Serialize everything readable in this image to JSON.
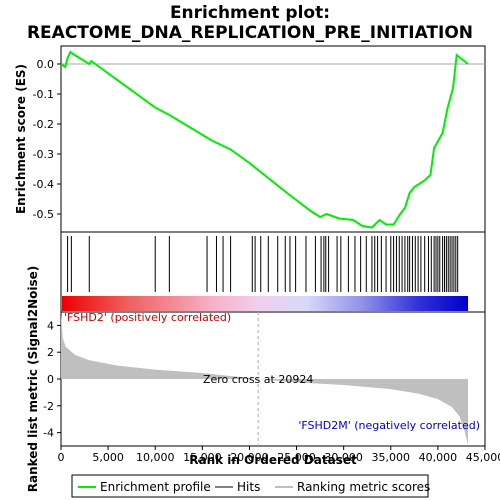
{
  "chart_data": {
    "type": "line",
    "title_line1": "Enrichment plot:",
    "title_line2": "REACTOME_DNA_REPLICATION_PRE_INITIATION",
    "top_panel": {
      "ylabel": "Enrichment score (ES)",
      "ylim": [
        -0.56,
        0.06
      ],
      "yticks": [
        0.0,
        -0.1,
        -0.2,
        -0.3,
        -0.4,
        -0.5
      ],
      "ytick_labels": [
        "0.0",
        "-0.1",
        "-0.2",
        "-0.3",
        "-0.4",
        "-0.5"
      ],
      "series_name": "Enrichment profile",
      "line_color": "#00ee00",
      "points": [
        [
          0,
          0.0
        ],
        [
          450,
          -0.01
        ],
        [
          700,
          0.02
        ],
        [
          1000,
          0.04
        ],
        [
          1200,
          0.035
        ],
        [
          3000,
          0.0
        ],
        [
          3200,
          0.01
        ],
        [
          10000,
          -0.145
        ],
        [
          11500,
          -0.17
        ],
        [
          16000,
          -0.255
        ],
        [
          18000,
          -0.285
        ],
        [
          20000,
          -0.33
        ],
        [
          24000,
          -0.43
        ],
        [
          26500,
          -0.49
        ],
        [
          27500,
          -0.51
        ],
        [
          28200,
          -0.5
        ],
        [
          29500,
          -0.515
        ],
        [
          31000,
          -0.52
        ],
        [
          32000,
          -0.54
        ],
        [
          33000,
          -0.545
        ],
        [
          33800,
          -0.52
        ],
        [
          34500,
          -0.535
        ],
        [
          35300,
          -0.535
        ],
        [
          36000,
          -0.5
        ],
        [
          36500,
          -0.48
        ],
        [
          37000,
          -0.43
        ],
        [
          37500,
          -0.41
        ],
        [
          38500,
          -0.39
        ],
        [
          39200,
          -0.37
        ],
        [
          39600,
          -0.28
        ],
        [
          40500,
          -0.23
        ],
        [
          41000,
          -0.15
        ],
        [
          41600,
          -0.08
        ],
        [
          42000,
          0.03
        ],
        [
          43200,
          0.0
        ]
      ],
      "zero_line_color": "#aaaaaa"
    },
    "hits_panel": {
      "series_name": "Hits",
      "hit_positions": [
        700,
        1100,
        3000,
        10000,
        11500,
        15500,
        16500,
        17200,
        18000,
        20300,
        20600,
        21200,
        22000,
        23000,
        23800,
        24300,
        24900,
        26000,
        27000,
        27600,
        27900,
        28100,
        28400,
        29300,
        29700,
        30500,
        31200,
        31800,
        32400,
        33000,
        33300,
        33600,
        34000,
        34500,
        35000,
        35300,
        35600,
        35900,
        36200,
        36500,
        36800,
        37000,
        37300,
        37600,
        37900,
        38200,
        38600,
        39000,
        39300,
        39600,
        39800,
        40000,
        40200,
        40500,
        40700,
        40900,
        41100,
        41300,
        41500,
        41700,
        41900,
        42100
      ],
      "color_bar_stops": [
        [
          0,
          "#ee0000"
        ],
        [
          7000,
          "#ee6060"
        ],
        [
          16000,
          "#f8b0c8"
        ],
        [
          21000,
          "#f0d0f0"
        ],
        [
          26000,
          "#d8d8f8"
        ],
        [
          32000,
          "#9090e8"
        ],
        [
          38000,
          "#3030d8"
        ],
        [
          43200,
          "#0000cc"
        ]
      ]
    },
    "bottom_panel": {
      "ylabel": "Ranked list metric (Signal2Noise)",
      "ylim": [
        -5,
        5
      ],
      "yticks": [
        4,
        2,
        0,
        -2,
        -4
      ],
      "ytick_labels": [
        "4",
        "2",
        "0",
        "-2",
        "-4"
      ],
      "series_name": "Ranking metric scores",
      "fill_color": "#bfbfbf",
      "metric_points": [
        [
          0,
          4.8
        ],
        [
          200,
          3.0
        ],
        [
          500,
          2.4
        ],
        [
          1500,
          1.8
        ],
        [
          3000,
          1.4
        ],
        [
          6000,
          1.0
        ],
        [
          10000,
          0.7
        ],
        [
          15000,
          0.45
        ],
        [
          20924,
          0.0
        ],
        [
          25000,
          -0.25
        ],
        [
          30000,
          -0.45
        ],
        [
          35000,
          -0.75
        ],
        [
          38000,
          -1.1
        ],
        [
          40000,
          -1.5
        ],
        [
          41500,
          -2.1
        ],
        [
          42300,
          -2.8
        ],
        [
          42800,
          -3.8
        ],
        [
          43200,
          -4.9
        ]
      ],
      "zero_cross_text": "Zero cross at 20924",
      "zero_cross_x": 20924,
      "pos_label": "'FSHD2' (positively correlated)",
      "neg_label": "'FSHD2M' (negatively correlated)"
    },
    "xaxis": {
      "xlabel": "Rank in Ordered Dataset",
      "xlim": [
        0,
        45000
      ],
      "xticks": [
        0,
        5000,
        10000,
        15000,
        20000,
        25000,
        30000,
        35000,
        40000,
        45000
      ],
      "xtick_labels": [
        "0",
        "5,000",
        "10,000",
        "15,000",
        "20,000",
        "25,000",
        "30,000",
        "35,000",
        "40,000",
        "45,000"
      ]
    },
    "legend": {
      "placement": "bottom",
      "items": [
        {
          "label": "Enrichment profile",
          "color": "#00ee00"
        },
        {
          "label": "Hits",
          "color": "#000000"
        },
        {
          "label": "Ranking metric scores",
          "color": "#bfbfbf"
        }
      ]
    }
  }
}
